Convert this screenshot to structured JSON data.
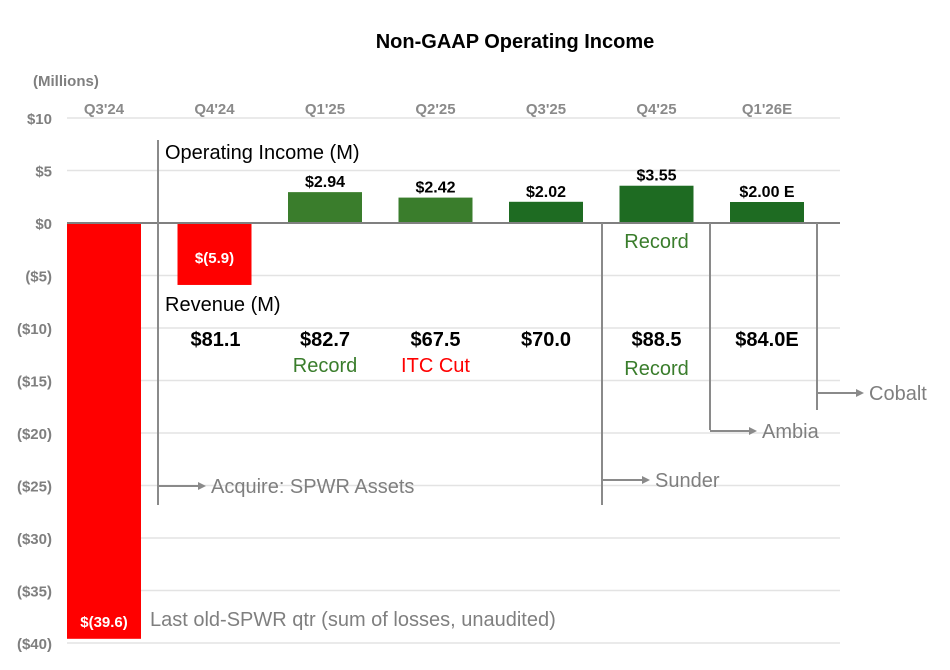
{
  "chart_data": {
    "type": "bar",
    "title": "Non-GAAP Operating Income",
    "ylabel": "(Millions)",
    "ylim": [
      -40,
      10
    ],
    "yticks": [
      10,
      5,
      0,
      -5,
      -10,
      -15,
      -20,
      -25,
      -30,
      -35,
      -40
    ],
    "ytick_labels": [
      "$10",
      "$5",
      "$0",
      "($5)",
      "($10)",
      "($15)",
      "($20)",
      "($25)",
      "($30)",
      "($35)",
      "($40)"
    ],
    "grid": true,
    "categories": [
      "Q3'24",
      "Q4'24",
      "Q1'25",
      "Q2'25",
      "Q3'25",
      "Q4'25",
      "Q1'26E"
    ],
    "values": [
      -39.6,
      -5.9,
      2.94,
      2.42,
      2.02,
      3.55,
      2.0
    ],
    "value_labels": [
      "$(39.6)",
      "$(5.9)",
      "$2.94",
      "$2.42",
      "$2.02",
      "$3.55",
      "$2.00 E"
    ],
    "bar_colors": [
      "#ff0000",
      "#ff0000",
      "#3a7d2c",
      "#3a7d2c",
      "#1e6b22",
      "#1e6b22",
      "#1e6b22"
    ],
    "operating_income_label": "Operating Income (M)",
    "revenue_label": "Revenue (M)",
    "revenue": [
      "",
      "$81.1",
      "$82.7",
      "$67.5",
      "$70.0",
      "$88.5",
      "$84.0E"
    ],
    "revenue_notes": [
      {
        "index": 2,
        "text": "Record",
        "color": "#3a7d2c"
      },
      {
        "index": 3,
        "text": "ITC Cut",
        "color": "#ff0000"
      },
      {
        "index": 5,
        "text": "Record",
        "color": "#3a7d2c"
      }
    ],
    "income_notes": [
      {
        "index": 5,
        "text": "Record",
        "color": "#3a7d2c"
      }
    ],
    "annotations": [
      {
        "text": "Acquire: SPWR Assets",
        "after_index": 0
      },
      {
        "text": "Sunder",
        "after_index": 4
      },
      {
        "text": "Ambia",
        "after_index": 5
      },
      {
        "text": "Cobalt",
        "after_index": 6
      }
    ],
    "footnote": "Last old-SPWR qtr (sum of losses, unaudited)"
  }
}
